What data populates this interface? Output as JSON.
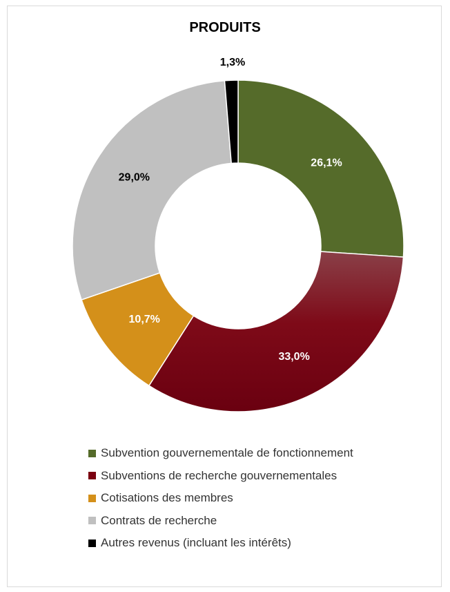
{
  "chart_data": {
    "type": "pie",
    "title": "PRODUITS",
    "categories": [
      "Subvention gouvernementale de fonctionnement",
      "Subventions de recherche gouvernementales",
      "Cotisations des membres",
      "Contrats de recherche",
      "Autres revenus (incluant les intérêts)"
    ],
    "values": [
      26.1,
      33.0,
      10.7,
      29.0,
      1.3
    ],
    "data_labels": [
      "26,1%",
      "33,0%",
      "10,7%",
      "29,0%",
      "1,3%"
    ],
    "colors": [
      "#556b2a",
      "#7b0010",
      "#d4901a",
      "#c0c0c0",
      "#000000"
    ],
    "label_colors": [
      "#ffffff",
      "#ffffff",
      "#ffffff",
      "#000000",
      "#000000"
    ],
    "donut": true,
    "legend_position": "bottom"
  }
}
